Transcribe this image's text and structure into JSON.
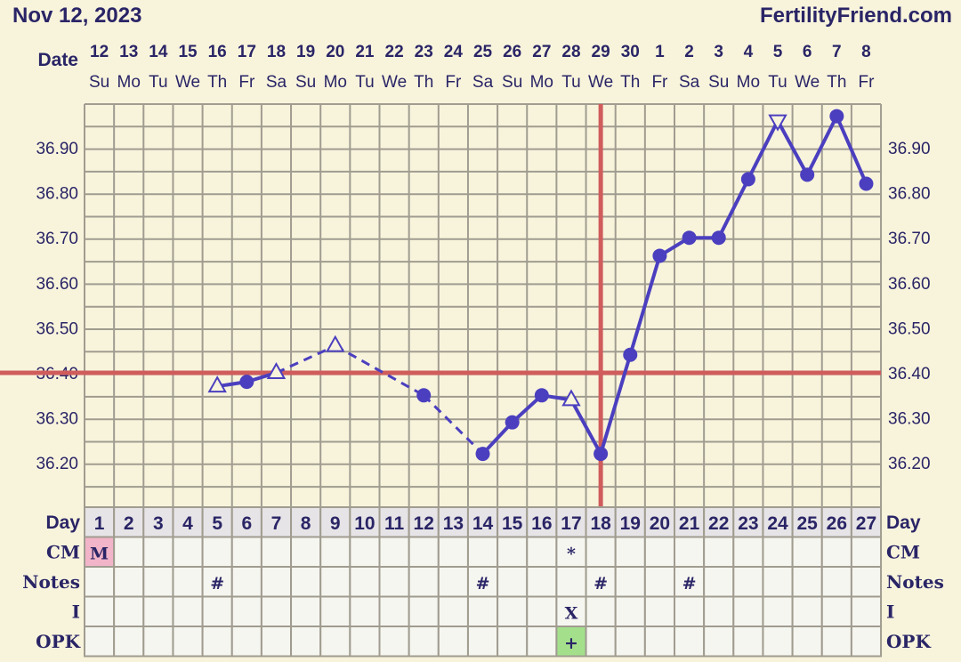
{
  "header": {
    "date": "Nov 12, 2023",
    "brand": "FertilityFriend.com"
  },
  "labels": {
    "date": "Date",
    "day": "Day",
    "cm": "CM",
    "notes": "Notes",
    "i": "I",
    "opk": "OPK"
  },
  "dates": [
    "12",
    "13",
    "14",
    "15",
    "16",
    "17",
    "18",
    "19",
    "20",
    "21",
    "22",
    "23",
    "24",
    "25",
    "26",
    "27",
    "28",
    "29",
    "30",
    "1",
    "2",
    "3",
    "4",
    "5",
    "6",
    "7",
    "8"
  ],
  "weekdays": [
    "Su",
    "Mo",
    "Tu",
    "We",
    "Th",
    "Fr",
    "Sa",
    "Su",
    "Mo",
    "Tu",
    "We",
    "Th",
    "Fr",
    "Sa",
    "Su",
    "Mo",
    "Tu",
    "We",
    "Th",
    "Fr",
    "Sa",
    "Su",
    "Mo",
    "Tu",
    "We",
    "Th",
    "Fr"
  ],
  "rows": {
    "cm": {
      "1": "M",
      "17": "*"
    },
    "notes": {
      "5": "#",
      "14": "#",
      "18": "#",
      "21": "#"
    },
    "i": {
      "17": "X"
    },
    "opk": {
      "17": "+"
    }
  },
  "colors": {
    "line": "#4b3fbf",
    "coverline": "#d05c5c",
    "menses": "#f2b4c8",
    "opk_positive": "#a4e08c",
    "grid": "#a09c90",
    "background": "#f8f4dc"
  },
  "chart_data": {
    "type": "line",
    "ylim": [
      36.1,
      37.0
    ],
    "yticks": [
      "36.20",
      "36.30",
      "36.40",
      "36.50",
      "36.60",
      "36.70",
      "36.80",
      "36.90"
    ],
    "grid": true,
    "coverline": 36.4,
    "ovulation_day": 18,
    "points": [
      {
        "day": 5,
        "temp": 36.37,
        "marker": "triangle-up"
      },
      {
        "day": 6,
        "temp": 36.38,
        "marker": "circle"
      },
      {
        "day": 7,
        "temp": 36.4,
        "marker": "triangle-up"
      },
      {
        "day": 9,
        "temp": 36.46,
        "marker": "triangle-up"
      },
      {
        "day": 12,
        "temp": 36.35,
        "marker": "circle"
      },
      {
        "day": 14,
        "temp": 36.22,
        "marker": "circle"
      },
      {
        "day": 15,
        "temp": 36.29,
        "marker": "circle"
      },
      {
        "day": 16,
        "temp": 36.35,
        "marker": "circle"
      },
      {
        "day": 17,
        "temp": 36.34,
        "marker": "triangle-up"
      },
      {
        "day": 18,
        "temp": 36.22,
        "marker": "circle"
      },
      {
        "day": 19,
        "temp": 36.44,
        "marker": "circle"
      },
      {
        "day": 20,
        "temp": 36.66,
        "marker": "circle"
      },
      {
        "day": 21,
        "temp": 36.7,
        "marker": "circle"
      },
      {
        "day": 22,
        "temp": 36.7,
        "marker": "circle"
      },
      {
        "day": 23,
        "temp": 36.83,
        "marker": "circle"
      },
      {
        "day": 24,
        "temp": 36.96,
        "marker": "triangle-down"
      },
      {
        "day": 25,
        "temp": 36.84,
        "marker": "circle"
      },
      {
        "day": 26,
        "temp": 36.97,
        "marker": "circle"
      },
      {
        "day": 27,
        "temp": 36.82,
        "marker": "circle"
      }
    ]
  }
}
